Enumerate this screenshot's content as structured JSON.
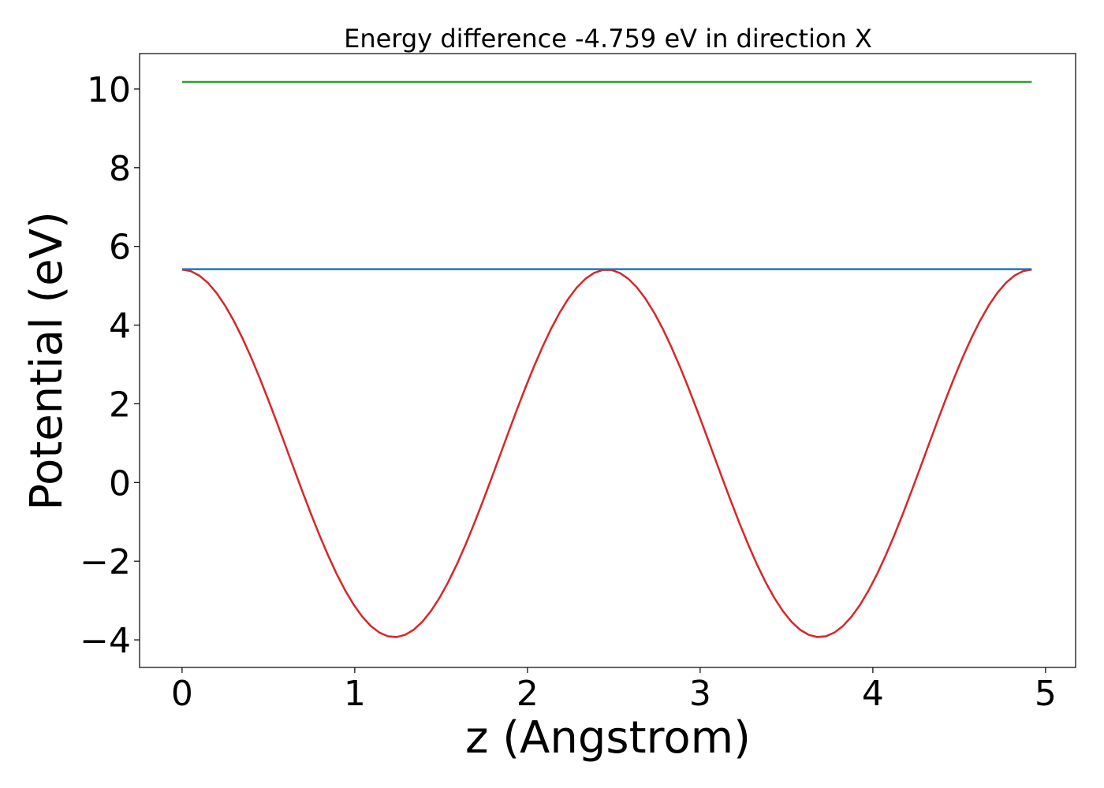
{
  "chart_data": {
    "type": "line",
    "title": "Energy difference -4.759 eV in direction X",
    "xlabel": "z (Angstrom)",
    "ylabel": "Potential (eV)",
    "xlim": [
      -0.246,
      5.174
    ],
    "ylim": [
      -4.7,
      10.9
    ],
    "xticks": [
      0,
      1,
      2,
      3,
      4,
      5
    ],
    "yticks": [
      -4,
      -2,
      0,
      2,
      4,
      6,
      8,
      10
    ],
    "xtick_labels": [
      "0",
      "1",
      "2",
      "3",
      "4",
      "5"
    ],
    "ytick_labels": [
      "−4",
      "−2",
      "0",
      "2",
      "4",
      "6",
      "8",
      "10"
    ],
    "grid": false,
    "series": [
      {
        "color": "#d62728",
        "x_start": 0,
        "x_end": 4.92,
        "points": 100,
        "mean": 0.74,
        "amplitude": 4.67,
        "period": 2.46,
        "phase_max_at": 0,
        "min_value": -3.93,
        "max_value": 5.41
      },
      {
        "color": "#1f77b4",
        "x": [
          0,
          4.92
        ],
        "y": [
          5.42,
          5.42
        ]
      },
      {
        "color": "#2ca02c",
        "x": [
          0,
          4.92
        ],
        "y": [
          10.18,
          10.18
        ]
      }
    ]
  }
}
